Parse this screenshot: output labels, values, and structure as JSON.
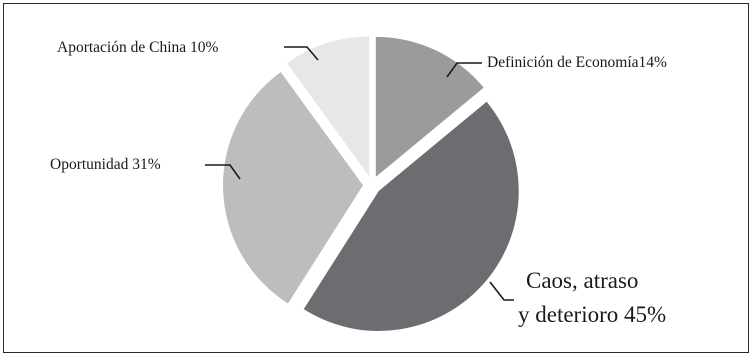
{
  "chart_data": {
    "type": "pie",
    "title": "",
    "slices": [
      {
        "label": "Definición de Economía",
        "value": 14,
        "value_text": "14%",
        "color": "#9b9b9b"
      },
      {
        "label": "Caos, atraso y deterioro",
        "value": 45,
        "value_text": "45%",
        "color": "#6c6d70"
      },
      {
        "label": "Oportunidad",
        "value": 31,
        "value_text": "31%",
        "color": "#bcbdbf"
      },
      {
        "label": "Aportación de China",
        "value": 10,
        "value_text": "10%",
        "color": "#e6e7e8"
      }
    ],
    "exploded": "all",
    "label_lines": [
      {
        "text": "Definición de Economía14%"
      },
      {
        "text": "Caos, atraso",
        "text2": "y deterioro 45%"
      },
      {
        "text": "Oportunidad 31%"
      },
      {
        "text": "Aportación de China 10%"
      }
    ]
  }
}
